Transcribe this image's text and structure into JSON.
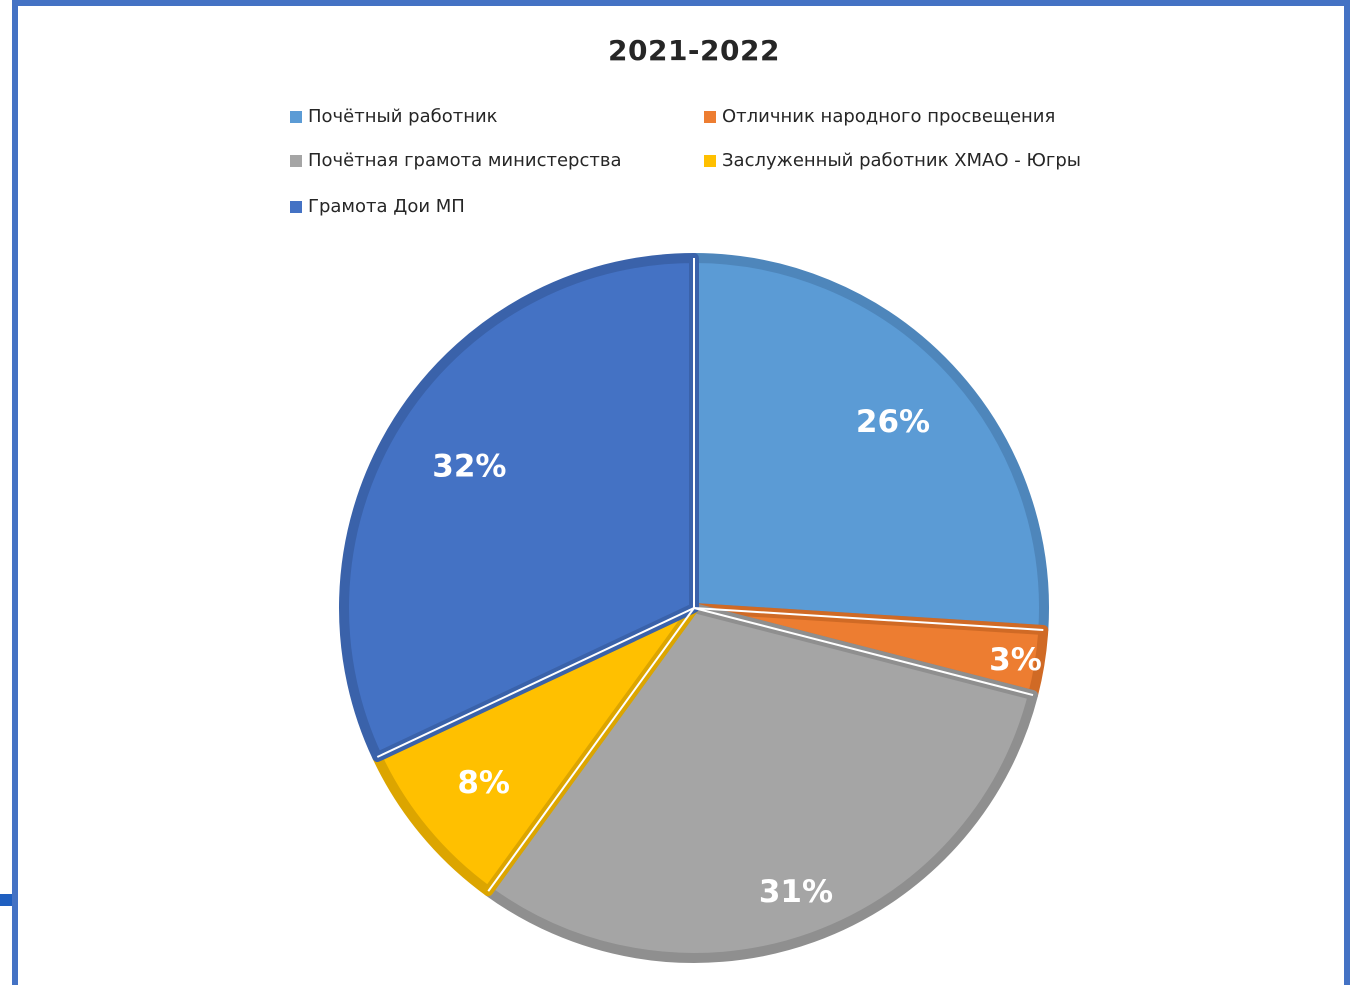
{
  "chart_data": {
    "type": "pie",
    "title": "2021-2022",
    "legend_position": "top",
    "categories": [
      "Почётный работник",
      "Отличник народного просвещения",
      "Почётная грамота министерства",
      "Заслуженный работник ХМАО - Югры",
      "Грамота Дои МП"
    ],
    "values": [
      26,
      3,
      31,
      8,
      32
    ],
    "labels": [
      "26%",
      "3%",
      "31%",
      "8%",
      "32%"
    ],
    "colors": [
      "#5b9bd5",
      "#ed7d31",
      "#a5a5a5",
      "#ffc000",
      "#4472c4"
    ],
    "edge_colors": [
      "#4e86bb",
      "#d06a25",
      "#8f8f8f",
      "#dca500",
      "#3a62aa"
    ]
  }
}
